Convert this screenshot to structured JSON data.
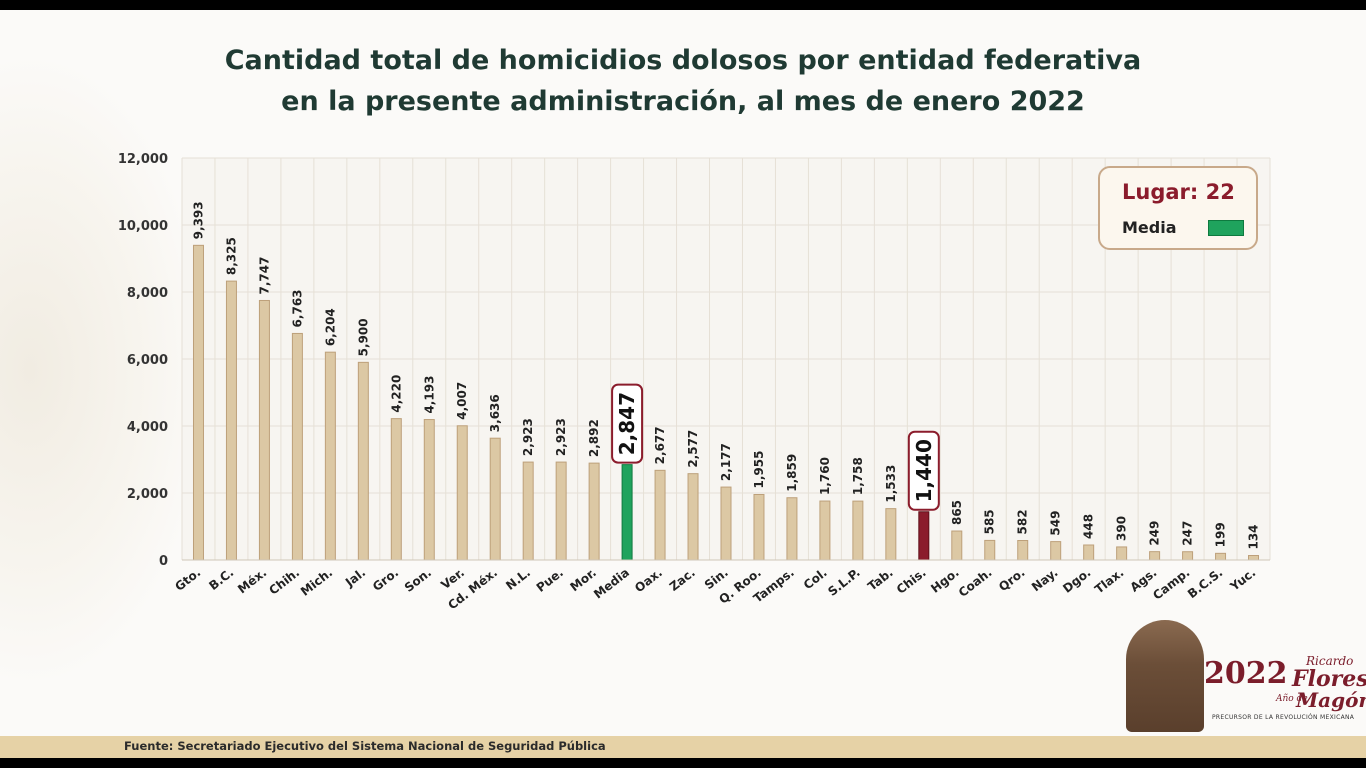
{
  "title_line1": "Cantidad total de homicidios dolosos por entidad federativa",
  "title_line2": "en la presente administración, al mes de enero 2022",
  "legend": {
    "rank": "Lugar: 22",
    "media_label": "Media"
  },
  "footer": "Fuente: Secretariado Ejecutivo del Sistema Nacional de Seguridad Pública",
  "logo": {
    "year": "2022",
    "ano_de": "Año de",
    "name1": "Ricardo",
    "name2": "Flores",
    "name3": "Magón",
    "tagline": "PRECURSOR DE LA REVOLUCIÓN MEXICANA"
  },
  "colors": {
    "bar": "#dcc8a4",
    "bar_border": "#bda07a",
    "media": "#1fa35d",
    "highlight": "#8b1c2c",
    "grid": "#e6e0d6",
    "callout_border": "#8b1c2c"
  },
  "chart_data": {
    "type": "bar",
    "title": "Cantidad total de homicidios dolosos por entidad federativa en la presente administración, al mes de enero 2022",
    "xlabel": "",
    "ylabel": "",
    "ylim": [
      0,
      12000
    ],
    "yticks": [
      0,
      2000,
      4000,
      6000,
      8000,
      10000,
      12000
    ],
    "ytick_labels": [
      "0",
      "2,000",
      "4,000",
      "6,000",
      "8,000",
      "10,000",
      "12,000"
    ],
    "grid": true,
    "legend_position": "top-right",
    "categories": [
      "Gto.",
      "B.C.",
      "Méx.",
      "Chih.",
      "Mich.",
      "Jal.",
      "Gro.",
      "Son.",
      "Ver.",
      "Cd. Méx.",
      "N.L.",
      "Pue.",
      "Mor.",
      "Media",
      "Oax.",
      "Zac.",
      "Sin.",
      "Q. Roo.",
      "Tamps.",
      "Col.",
      "S.L.P.",
      "Tab.",
      "Chis.",
      "Hgo.",
      "Coah.",
      "Qro.",
      "Nay.",
      "Dgo.",
      "Tlax.",
      "Ags.",
      "Camp.",
      "B.C.S.",
      "Yuc."
    ],
    "values": [
      9393,
      8325,
      7747,
      6763,
      6204,
      5900,
      4220,
      4193,
      4007,
      3636,
      2923,
      2923,
      2892,
      2847,
      2677,
      2577,
      2177,
      1955,
      1859,
      1760,
      1758,
      1533,
      1440,
      865,
      585,
      582,
      549,
      448,
      390,
      249,
      247,
      199,
      134
    ],
    "value_labels": [
      "9,393",
      "8,325",
      "7,747",
      "6,763",
      "6,204",
      "5,900",
      "4,220",
      "4,193",
      "4,007",
      "3,636",
      "2,923",
      "2,923",
      "2,892",
      "2,847",
      "2,677",
      "2,577",
      "2,177",
      "1,955",
      "1,859",
      "1,760",
      "1,758",
      "1,533",
      "1,440",
      "865",
      "585",
      "582",
      "549",
      "448",
      "390",
      "249",
      "247",
      "199",
      "134"
    ],
    "media_category": "Media",
    "highlight_category": "Chis."
  }
}
